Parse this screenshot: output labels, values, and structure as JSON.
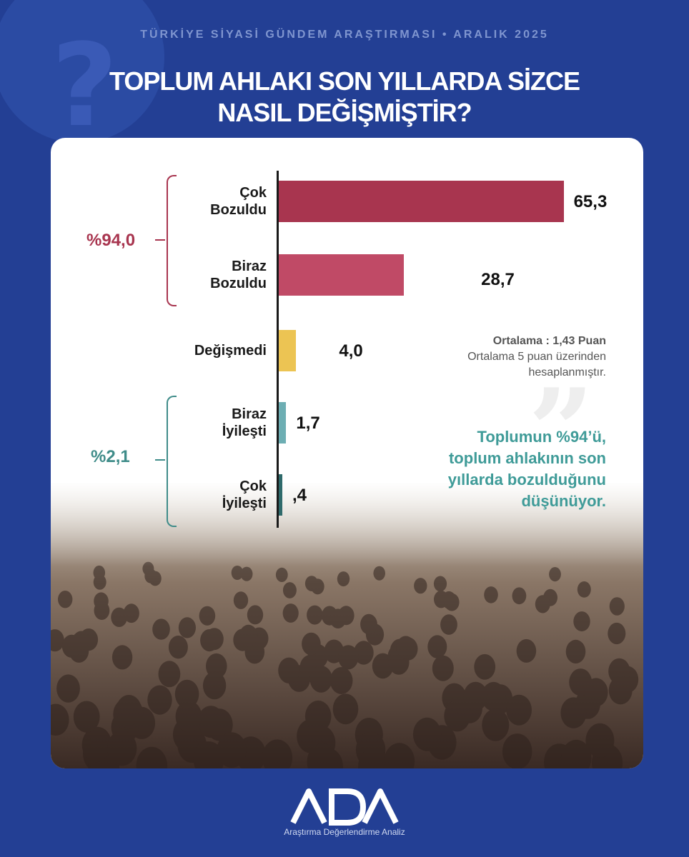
{
  "header": {
    "survey": "TÜRKİYE SİYASİ GÜNDEM ARAŞTIRMASI • ARALIK 2025",
    "title_line1": "TOPLUM AHLAKI SON YILLARDA SİZCE",
    "title_line2": "NASIL DEĞİŞMİŞTİR?"
  },
  "chart_data": {
    "type": "bar",
    "orientation": "horizontal",
    "categories": [
      "Çok Bozuldu",
      "Biraz Bozuldu",
      "Değişmedi",
      "Biraz İyileşti",
      "Çok İyileşti"
    ],
    "category_lines": [
      [
        "Çok",
        "Bozuldu"
      ],
      [
        "Biraz",
        "Bozuldu"
      ],
      [
        "Değişmedi"
      ],
      [
        "Biraz",
        "İyileşti"
      ],
      [
        "Çok",
        "İyileşti"
      ]
    ],
    "values": [
      65.3,
      28.7,
      4.0,
      1.7,
      0.4
    ],
    "value_labels": [
      "65,3",
      "28,7",
      "4,0",
      "1,7",
      ",4"
    ],
    "colors": [
      "#a8354f",
      "#c04a66",
      "#ecc453",
      "#6daeb3",
      "#2f6a6b"
    ],
    "groups": [
      {
        "label": "%94,0",
        "color": "#a8354f"
      },
      {
        "label": "%2,1",
        "color": "#3f8c89"
      }
    ]
  },
  "notes": {
    "average": "Ortalama : 1,43 Puan",
    "average_note_line1": "Ortalama 5 puan üzerinden",
    "average_note_line2": "hesaplanmıştır.",
    "insight_lines": [
      "Toplumun %94’ü,",
      "toplum ahlakının son",
      "yıllarda bozulduğunu",
      "düşünüyor."
    ]
  },
  "brand": {
    "logo_text": "ADA",
    "tagline": "Araştırma Değerlendirme Analiz"
  }
}
